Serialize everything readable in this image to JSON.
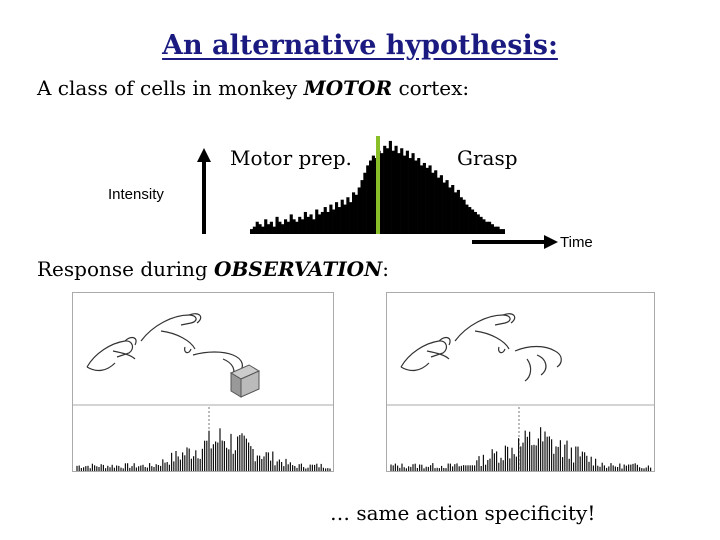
{
  "slide": {
    "title": "An alternative hypothesis:",
    "line1": {
      "prefix": "A class of cells in monkey ",
      "emph": "MOTOR",
      "suffix": " cortex:"
    },
    "line2": {
      "prefix": "Response during ",
      "emph": "OBSERVATION",
      "suffix": ":"
    },
    "conclusion": "… same action specificity!"
  },
  "chart_data": {
    "type": "bar",
    "title": "",
    "xlabel": "Time",
    "ylabel": "Intensity",
    "annotations": [
      "Motor prep.",
      "Grasp"
    ],
    "marker_color": "#8bbf2a",
    "values": [
      2,
      3,
      5,
      4,
      3,
      6,
      4,
      5,
      3,
      7,
      5,
      4,
      6,
      5,
      8,
      6,
      5,
      7,
      6,
      9,
      7,
      8,
      6,
      10,
      8,
      9,
      11,
      9,
      12,
      10,
      13,
      11,
      14,
      12,
      15,
      13,
      17,
      16,
      19,
      22,
      25,
      28,
      30,
      32,
      31,
      34,
      33,
      36,
      35,
      38,
      34,
      36,
      33,
      35,
      32,
      34,
      31,
      33,
      30,
      31,
      28,
      29,
      27,
      28,
      25,
      26,
      23,
      24,
      21,
      22,
      19,
      20,
      17,
      18,
      15,
      14,
      12,
      11,
      10,
      9,
      8,
      7,
      6,
      5,
      5,
      4,
      3,
      3,
      2,
      2
    ]
  },
  "colors": {
    "title": "#1a1a80",
    "bars": "#000000"
  }
}
